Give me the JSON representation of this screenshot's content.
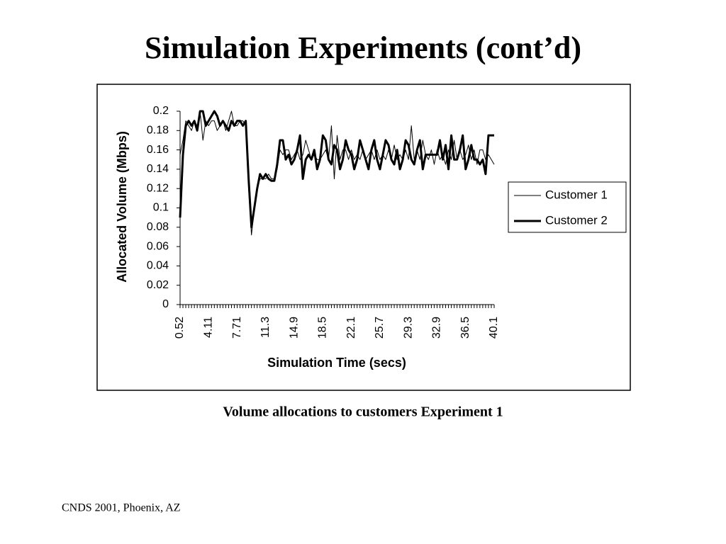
{
  "slide": {
    "title": "Simulation Experiments (cont’d)",
    "caption": "Volume allocations to customers Experiment 1",
    "footer": "CNDS 2001, Phoenix, AZ"
  },
  "chart_data": {
    "type": "line",
    "x_label": "Simulation Time (secs)",
    "y_label": "Allocated Volume (Mbps)",
    "categories": [
      "0.52",
      null,
      null,
      null,
      null,
      null,
      null,
      null,
      null,
      null,
      "4.11",
      null,
      null,
      null,
      null,
      null,
      null,
      null,
      null,
      null,
      "7.71",
      null,
      null,
      null,
      null,
      null,
      null,
      null,
      null,
      null,
      "11.3",
      null,
      null,
      null,
      null,
      null,
      null,
      null,
      null,
      null,
      "14.9",
      null,
      null,
      null,
      null,
      null,
      null,
      null,
      null,
      null,
      "18.5",
      null,
      null,
      null,
      null,
      null,
      null,
      null,
      null,
      null,
      "22.1",
      null,
      null,
      null,
      null,
      null,
      null,
      null,
      null,
      null,
      "25.7",
      null,
      null,
      null,
      null,
      null,
      null,
      null,
      null,
      null,
      "29.3",
      null,
      null,
      null,
      null,
      null,
      null,
      null,
      null,
      null,
      "32.9",
      null,
      null,
      null,
      null,
      null,
      null,
      null,
      null,
      null,
      "36.5",
      null,
      null,
      null,
      null,
      null,
      null,
      null,
      null,
      null,
      "40.1"
    ],
    "series": [
      {
        "name": "Customer 1",
        "color": "#000000",
        "line_width": 1,
        "values": [
          0.155,
          0.17,
          0.19,
          0.185,
          0.18,
          0.19,
          0.185,
          0.2,
          0.17,
          0.19,
          0.185,
          0.19,
          0.19,
          0.18,
          0.185,
          0.19,
          0.18,
          0.19,
          0.2,
          0.185,
          0.185,
          0.19,
          0.19,
          0.185,
          0.12,
          0.072,
          0.1,
          0.12,
          0.13,
          0.13,
          0.13,
          0.135,
          0.13,
          0.13,
          0.14,
          0.16,
          0.155,
          0.16,
          0.16,
          0.15,
          0.155,
          0.16,
          0.15,
          0.155,
          0.17,
          0.16,
          0.15,
          0.155,
          0.15,
          0.15,
          0.155,
          0.16,
          0.15,
          0.185,
          0.13,
          0.175,
          0.15,
          0.16,
          0.16,
          0.15,
          0.16,
          0.15,
          0.155,
          0.15,
          0.16,
          0.15,
          0.155,
          0.16,
          0.15,
          0.16,
          0.15,
          0.155,
          0.15,
          0.16,
          0.15,
          0.165,
          0.15,
          0.155,
          0.15,
          0.16,
          0.15,
          0.185,
          0.15,
          0.16,
          0.15,
          0.17,
          0.155,
          0.15,
          0.16,
          0.145,
          0.16,
          0.15,
          0.155,
          0.145,
          0.16,
          0.15,
          0.17,
          0.15,
          0.16,
          0.15,
          0.155,
          0.165,
          0.15,
          0.16,
          0.145,
          0.16,
          0.16,
          0.15,
          0.155,
          0.15,
          0.145
        ]
      },
      {
        "name": "Customer 2",
        "color": "#000000",
        "line_width": 3,
        "values": [
          0.09,
          0.155,
          0.185,
          0.19,
          0.185,
          0.19,
          0.18,
          0.2,
          0.2,
          0.185,
          0.19,
          0.195,
          0.2,
          0.195,
          0.185,
          0.19,
          0.185,
          0.18,
          0.19,
          0.185,
          0.19,
          0.19,
          0.185,
          0.19,
          0.13,
          0.08,
          0.1,
          0.12,
          0.135,
          0.13,
          0.135,
          0.13,
          0.128,
          0.128,
          0.145,
          0.17,
          0.17,
          0.15,
          0.155,
          0.145,
          0.15,
          0.16,
          0.175,
          0.13,
          0.15,
          0.155,
          0.15,
          0.16,
          0.14,
          0.15,
          0.175,
          0.17,
          0.15,
          0.145,
          0.165,
          0.16,
          0.14,
          0.15,
          0.17,
          0.16,
          0.155,
          0.14,
          0.15,
          0.17,
          0.16,
          0.15,
          0.14,
          0.16,
          0.17,
          0.15,
          0.14,
          0.155,
          0.17,
          0.165,
          0.15,
          0.145,
          0.16,
          0.14,
          0.15,
          0.17,
          0.165,
          0.15,
          0.145,
          0.16,
          0.17,
          0.14,
          0.155,
          0.155,
          0.155,
          0.155,
          0.155,
          0.17,
          0.15,
          0.165,
          0.14,
          0.175,
          0.15,
          0.15,
          0.16,
          0.175,
          0.14,
          0.15,
          0.165,
          0.15,
          0.15,
          0.145,
          0.15,
          0.135,
          0.175,
          0.175,
          0.175
        ]
      }
    ],
    "ylim": [
      0,
      0.2
    ],
    "yticks": [
      0,
      0.02,
      0.04,
      0.06,
      0.08,
      0.1,
      0.12,
      0.14,
      0.16,
      0.18,
      0.2
    ],
    "grid": false,
    "legend": "right"
  }
}
